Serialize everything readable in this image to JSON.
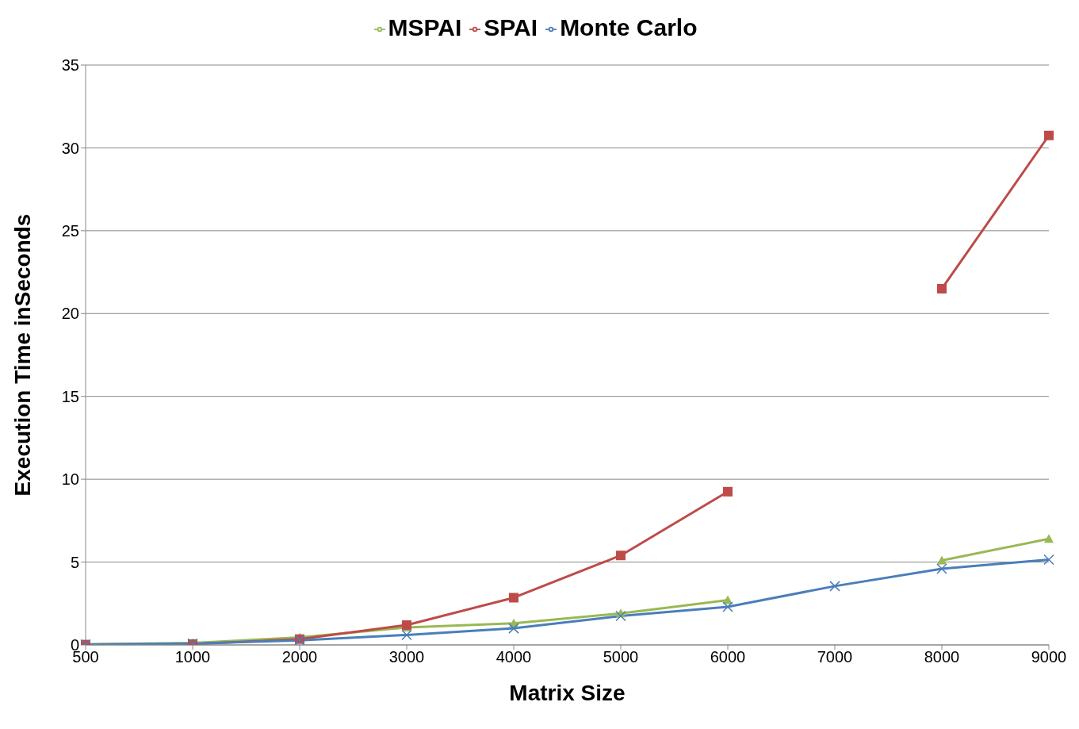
{
  "chart_data": {
    "type": "line",
    "xlabel": "Matrix Size",
    "ylabel": "Execution Time inSeconds",
    "categories": [
      "500",
      "1000",
      "2000",
      "3000",
      "4000",
      "5000",
      "6000",
      "7000",
      "8000",
      "9000"
    ],
    "series": [
      {
        "name": "Monte Carlo",
        "color": "#4a7ebb",
        "marker": "cross",
        "values": [
          0.02,
          0.08,
          0.28,
          0.6,
          1.0,
          1.75,
          2.3,
          3.55,
          4.6,
          5.15
        ]
      },
      {
        "name": "SPAI",
        "color": "#be4b48",
        "marker": "square",
        "values": [
          0.02,
          0.05,
          0.35,
          1.2,
          2.85,
          5.4,
          9.25,
          null,
          21.5,
          30.75
        ]
      },
      {
        "name": "MSPAI",
        "color": "#98b954",
        "marker": "triangle",
        "values": [
          0.03,
          0.12,
          0.45,
          1.05,
          1.3,
          1.9,
          2.7,
          null,
          5.1,
          6.4
        ]
      }
    ],
    "ylim": [
      0,
      35
    ],
    "yticks": [
      0,
      5,
      10,
      15,
      20,
      25,
      30,
      35
    ],
    "grid": "y",
    "legend": "top"
  }
}
